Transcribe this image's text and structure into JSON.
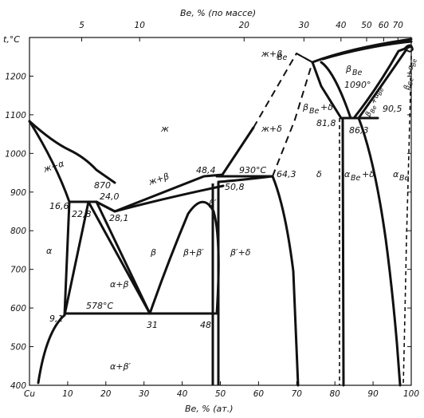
{
  "top_axis": {
    "title": "Be, % (по массе)",
    "ticks": [
      {
        "label": "5",
        "at": 5.5
      },
      {
        "label": "10",
        "at": 11.6
      },
      {
        "label": "20",
        "at": 22.6
      },
      {
        "label": "30",
        "at": 28.9
      },
      {
        "label": "40",
        "at": 32.8
      },
      {
        "label": "50",
        "at": 35.5
      },
      {
        "label": "60",
        "at": 37.3
      },
      {
        "label": "70",
        "at": 38.8
      }
    ]
  },
  "bottom_axis": {
    "title": "Be, % (ат.)",
    "origin_label": "Cu",
    "ticks": [
      "10",
      "20",
      "30",
      "40",
      "50",
      "60",
      "70",
      "80",
      "90",
      "100"
    ]
  },
  "left_axis": {
    "title": "t,°C",
    "ticks": [
      "400",
      "500",
      "600",
      "700",
      "800",
      "900",
      "1000",
      "1100",
      "1200"
    ]
  },
  "phase_labels": {
    "liquid": "ж",
    "liq_alpha": "ж+α",
    "liq_beta": "ж+β",
    "liq_delta": "ж+δ",
    "liq_beta_be": "ж+β",
    "liq_beta_be_sub": "Be",
    "alpha": "α",
    "beta": "β",
    "alpha_beta": "α+β",
    "alpha_beta_prime": "α+β′",
    "beta_beta_prime": "β+β′",
    "beta_prime": "β′",
    "beta_prime_delta": "β′+δ",
    "delta": "δ",
    "beta_be": "β",
    "beta_be_sub": "Be",
    "beta_be_delta": "β",
    "beta_be_delta_sub": "Be",
    "beta_be_delta_tail": "+δ",
    "alpha_be_delta": "α",
    "alpha_be_delta_sub": "Be",
    "alpha_be_delta_tail": "+δ",
    "alpha_be": "α",
    "alpha_be_sub": "Be",
    "beta_alpha_be": "β",
    "beta_alpha_be_sub": "Be",
    "beta_alpha_be_mid": "+α",
    "beta_alpha_be_sub2": "Be",
    "beta_be_alpha_be_r": "β",
    "beta_be_alpha_be_r_sub": "Be",
    "beta_be_alpha_be_r_mid": "+α",
    "beta_be_alpha_be_r_sub2": "Be"
  },
  "point_labels": {
    "p16_6": "16,6",
    "p22_8": "22,8",
    "p870": "870",
    "p24_0": "24,0",
    "p28_1": "28,1",
    "p48_4": "48,4",
    "p930": "930°C",
    "p50_8": "50,8",
    "p64_3": "64,3",
    "p81_8": "81,8",
    "p86_3": "86,3",
    "p1090": "1090°",
    "p90_5": "90,5",
    "p9_1": "9,1",
    "p578": "578°C",
    "p31": "31",
    "p48": "48"
  },
  "key_points": {
    "cu_melting_c": 1083,
    "peritectic_alpha_c": 870,
    "eutectoid_c": 578,
    "peritectic_beta_prime_c": 930,
    "eutectic_be_c": 1090
  }
}
